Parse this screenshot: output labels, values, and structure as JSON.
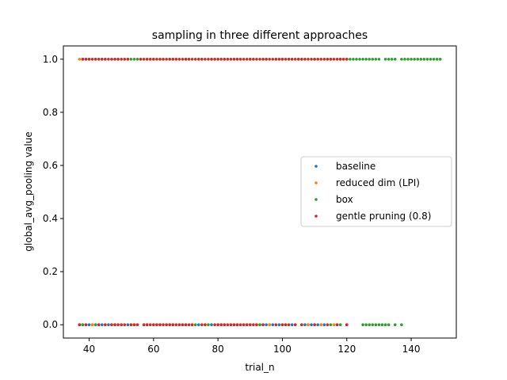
{
  "chart_data": {
    "type": "scatter",
    "title": "sampling in three different approaches",
    "xlabel": "trial_n",
    "ylabel": "global_avg_pooling value",
    "xlim": [
      32,
      154
    ],
    "ylim": [
      -0.05,
      1.05
    ],
    "xticks": [
      40,
      60,
      80,
      100,
      120,
      140
    ],
    "yticks": [
      0.0,
      0.2,
      0.4,
      0.6,
      0.8,
      1.0
    ],
    "ytick_labels": [
      "0.0",
      "0.2",
      "0.4",
      "0.6",
      "0.8",
      "1.0"
    ],
    "legend_position": "center-right",
    "grid": false,
    "series": [
      {
        "name": "baseline",
        "color": "#1f77b4",
        "points": [
          [
            38,
            1
          ],
          [
            40,
            1
          ],
          [
            42,
            1
          ],
          [
            45,
            1
          ],
          [
            48,
            1
          ],
          [
            52,
            1
          ],
          [
            56,
            1
          ],
          [
            60,
            1
          ],
          [
            65,
            1
          ],
          [
            70,
            1
          ],
          [
            75,
            1
          ],
          [
            80,
            1
          ],
          [
            85,
            1
          ],
          [
            90,
            1
          ],
          [
            95,
            1
          ],
          [
            100,
            1
          ],
          [
            105,
            1
          ],
          [
            110,
            1
          ],
          [
            115,
            1
          ],
          [
            118,
            1
          ],
          [
            37,
            0
          ],
          [
            38,
            0
          ],
          [
            39,
            0
          ],
          [
            40,
            0
          ],
          [
            41,
            0
          ],
          [
            42,
            0
          ],
          [
            43,
            0
          ],
          [
            44,
            0
          ],
          [
            46,
            0
          ],
          [
            48,
            0
          ],
          [
            52,
            0
          ],
          [
            54,
            0
          ],
          [
            58,
            0
          ],
          [
            62,
            0
          ],
          [
            66,
            0
          ],
          [
            70,
            0
          ],
          [
            74,
            0
          ],
          [
            78,
            0
          ],
          [
            82,
            0
          ],
          [
            86,
            0
          ],
          [
            90,
            0
          ],
          [
            93,
            0
          ],
          [
            94,
            0
          ],
          [
            95,
            0
          ],
          [
            96,
            0
          ],
          [
            97,
            0
          ],
          [
            99,
            0
          ],
          [
            103,
            0
          ],
          [
            107,
            0
          ],
          [
            108,
            0
          ],
          [
            109,
            0
          ],
          [
            110,
            0
          ],
          [
            111,
            0
          ],
          [
            112,
            0
          ],
          [
            113,
            0
          ],
          [
            117,
            0
          ],
          [
            120,
            0
          ]
        ]
      },
      {
        "name": "reduced dim (LPI)",
        "color": "#ff7f0e",
        "points": [
          [
            37,
            1
          ],
          [
            38,
            1
          ],
          [
            40,
            1
          ],
          [
            43,
            1
          ],
          [
            47,
            1
          ],
          [
            51,
            1
          ],
          [
            55,
            1
          ],
          [
            59,
            1
          ],
          [
            63,
            1
          ],
          [
            67,
            1
          ],
          [
            71,
            1
          ],
          [
            75,
            1
          ],
          [
            79,
            1
          ],
          [
            83,
            1
          ],
          [
            87,
            1
          ],
          [
            91,
            1
          ],
          [
            95,
            1
          ],
          [
            99,
            1
          ],
          [
            103,
            1
          ],
          [
            107,
            1
          ],
          [
            111,
            1
          ],
          [
            115,
            1
          ],
          [
            118,
            1
          ],
          [
            119,
            1
          ],
          [
            120,
            1
          ],
          [
            37,
            0
          ],
          [
            41,
            0
          ],
          [
            45,
            0
          ],
          [
            50,
            0
          ],
          [
            55,
            0
          ],
          [
            60,
            0
          ],
          [
            64,
            0
          ],
          [
            68,
            0
          ],
          [
            72,
            0
          ],
          [
            76,
            0
          ],
          [
            80,
            0
          ],
          [
            84,
            0
          ],
          [
            88,
            0
          ],
          [
            92,
            0
          ],
          [
            96,
            0
          ],
          [
            100,
            0
          ],
          [
            104,
            0
          ],
          [
            108,
            0
          ],
          [
            112,
            0
          ],
          [
            116,
            0
          ],
          [
            120,
            0
          ]
        ]
      },
      {
        "name": "box",
        "color": "#2ca02c",
        "points": [
          [
            39,
            1
          ],
          [
            44,
            1
          ],
          [
            49,
            1
          ],
          [
            53,
            1
          ],
          [
            54,
            1
          ],
          [
            55,
            1
          ],
          [
            58,
            1
          ],
          [
            62,
            1
          ],
          [
            66,
            1
          ],
          [
            70,
            1
          ],
          [
            74,
            1
          ],
          [
            78,
            1
          ],
          [
            82,
            1
          ],
          [
            86,
            1
          ],
          [
            90,
            1
          ],
          [
            94,
            1
          ],
          [
            98,
            1
          ],
          [
            102,
            1
          ],
          [
            106,
            1
          ],
          [
            110,
            1
          ],
          [
            114,
            1
          ],
          [
            118,
            1
          ],
          [
            121,
            1
          ],
          [
            122,
            1
          ],
          [
            123,
            1
          ],
          [
            124,
            1
          ],
          [
            125,
            1
          ],
          [
            126,
            1
          ],
          [
            127,
            1
          ],
          [
            128,
            1
          ],
          [
            129,
            1
          ],
          [
            130,
            1
          ],
          [
            132,
            1
          ],
          [
            133,
            1
          ],
          [
            134,
            1
          ],
          [
            135,
            1
          ],
          [
            137,
            1
          ],
          [
            138,
            1
          ],
          [
            139,
            1
          ],
          [
            140,
            1
          ],
          [
            141,
            1
          ],
          [
            142,
            1
          ],
          [
            143,
            1
          ],
          [
            144,
            1
          ],
          [
            145,
            1
          ],
          [
            146,
            1
          ],
          [
            147,
            1
          ],
          [
            148,
            1
          ],
          [
            149,
            1
          ],
          [
            38,
            0
          ],
          [
            42,
            0
          ],
          [
            47,
            0
          ],
          [
            53,
            0
          ],
          [
            57,
            0
          ],
          [
            61,
            0
          ],
          [
            65,
            0
          ],
          [
            69,
            0
          ],
          [
            73,
            0
          ],
          [
            77,
            0
          ],
          [
            81,
            0
          ],
          [
            85,
            0
          ],
          [
            89,
            0
          ],
          [
            93,
            0
          ],
          [
            101,
            0
          ],
          [
            106,
            0
          ],
          [
            115,
            0
          ],
          [
            118,
            0
          ],
          [
            125,
            0
          ],
          [
            126,
            0
          ],
          [
            127,
            0
          ],
          [
            128,
            0
          ],
          [
            129,
            0
          ],
          [
            130,
            0
          ],
          [
            131,
            0
          ],
          [
            132,
            0
          ],
          [
            133,
            0
          ],
          [
            135,
            0
          ],
          [
            137,
            0
          ]
        ]
      },
      {
        "name": "gentle pruning (0.8)",
        "color": "#d62728",
        "points": [
          [
            38,
            1
          ],
          [
            39,
            1
          ],
          [
            40,
            1
          ],
          [
            41,
            1
          ],
          [
            42,
            1
          ],
          [
            43,
            1
          ],
          [
            44,
            1
          ],
          [
            45,
            1
          ],
          [
            46,
            1
          ],
          [
            47,
            1
          ],
          [
            48,
            1
          ],
          [
            49,
            1
          ],
          [
            50,
            1
          ],
          [
            51,
            1
          ],
          [
            52,
            1
          ],
          [
            56,
            1
          ],
          [
            57,
            1
          ],
          [
            58,
            1
          ],
          [
            59,
            1
          ],
          [
            60,
            1
          ],
          [
            61,
            1
          ],
          [
            62,
            1
          ],
          [
            63,
            1
          ],
          [
            64,
            1
          ],
          [
            65,
            1
          ],
          [
            66,
            1
          ],
          [
            67,
            1
          ],
          [
            68,
            1
          ],
          [
            69,
            1
          ],
          [
            70,
            1
          ],
          [
            71,
            1
          ],
          [
            72,
            1
          ],
          [
            73,
            1
          ],
          [
            74,
            1
          ],
          [
            75,
            1
          ],
          [
            76,
            1
          ],
          [
            77,
            1
          ],
          [
            78,
            1
          ],
          [
            79,
            1
          ],
          [
            80,
            1
          ],
          [
            81,
            1
          ],
          [
            82,
            1
          ],
          [
            83,
            1
          ],
          [
            84,
            1
          ],
          [
            85,
            1
          ],
          [
            86,
            1
          ],
          [
            87,
            1
          ],
          [
            88,
            1
          ],
          [
            89,
            1
          ],
          [
            90,
            1
          ],
          [
            91,
            1
          ],
          [
            92,
            1
          ],
          [
            93,
            1
          ],
          [
            94,
            1
          ],
          [
            95,
            1
          ],
          [
            96,
            1
          ],
          [
            97,
            1
          ],
          [
            98,
            1
          ],
          [
            99,
            1
          ],
          [
            100,
            1
          ],
          [
            101,
            1
          ],
          [
            102,
            1
          ],
          [
            103,
            1
          ],
          [
            104,
            1
          ],
          [
            105,
            1
          ],
          [
            106,
            1
          ],
          [
            107,
            1
          ],
          [
            108,
            1
          ],
          [
            109,
            1
          ],
          [
            110,
            1
          ],
          [
            111,
            1
          ],
          [
            112,
            1
          ],
          [
            113,
            1
          ],
          [
            114,
            1
          ],
          [
            115,
            1
          ],
          [
            116,
            1
          ],
          [
            117,
            1
          ],
          [
            118,
            1
          ],
          [
            119,
            1
          ],
          [
            120,
            1
          ],
          [
            37,
            0
          ],
          [
            39,
            0
          ],
          [
            43,
            0
          ],
          [
            45,
            0
          ],
          [
            47,
            0
          ],
          [
            48,
            0
          ],
          [
            49,
            0
          ],
          [
            50,
            0
          ],
          [
            51,
            0
          ],
          [
            53,
            0
          ],
          [
            54,
            0
          ],
          [
            55,
            0
          ],
          [
            57,
            0
          ],
          [
            58,
            0
          ],
          [
            59,
            0
          ],
          [
            60,
            0
          ],
          [
            61,
            0
          ],
          [
            62,
            0
          ],
          [
            63,
            0
          ],
          [
            64,
            0
          ],
          [
            65,
            0
          ],
          [
            66,
            0
          ],
          [
            67,
            0
          ],
          [
            68,
            0
          ],
          [
            69,
            0
          ],
          [
            70,
            0
          ],
          [
            71,
            0
          ],
          [
            72,
            0
          ],
          [
            75,
            0
          ],
          [
            76,
            0
          ],
          [
            79,
            0
          ],
          [
            80,
            0
          ],
          [
            81,
            0
          ],
          [
            82,
            0
          ],
          [
            83,
            0
          ],
          [
            84,
            0
          ],
          [
            85,
            0
          ],
          [
            86,
            0
          ],
          [
            87,
            0
          ],
          [
            88,
            0
          ],
          [
            89,
            0
          ],
          [
            90,
            0
          ],
          [
            91,
            0
          ],
          [
            92,
            0
          ],
          [
            94,
            0
          ],
          [
            98,
            0
          ],
          [
            100,
            0
          ],
          [
            101,
            0
          ],
          [
            102,
            0
          ],
          [
            104,
            0
          ],
          [
            106,
            0
          ],
          [
            110,
            0
          ],
          [
            114,
            0
          ],
          [
            117,
            0
          ],
          [
            120,
            0
          ]
        ]
      }
    ]
  }
}
